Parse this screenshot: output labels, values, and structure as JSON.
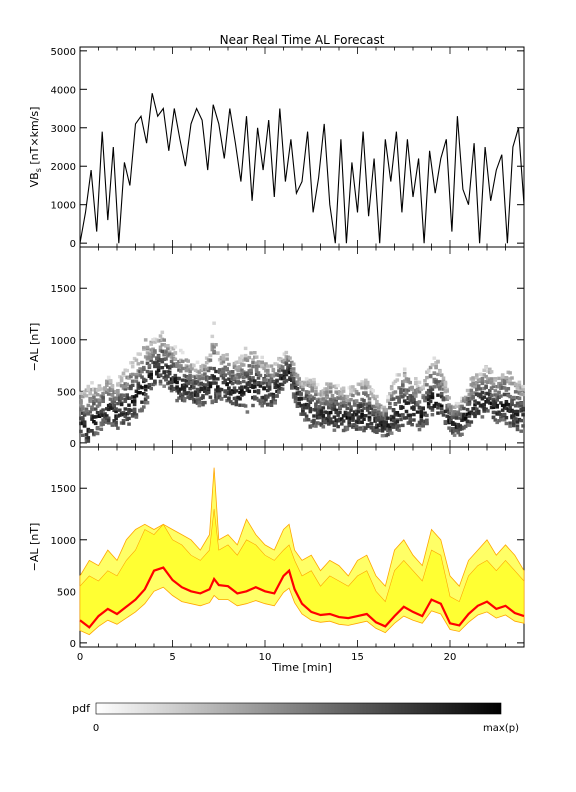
{
  "title": "Near Real Time AL Forecast",
  "xlabel": "Time [min]",
  "colorbar": {
    "label": "pdf",
    "min_label": "0",
    "max_label": "max(p)"
  },
  "chart_data": [
    {
      "type": "line",
      "name": "vbs-panel",
      "ylabel": "VB",
      "ylabel_sub": "s",
      "ylabel_units": " [nT×km/s]",
      "xlim": [
        0,
        24
      ],
      "ylim": [
        -100,
        5100
      ],
      "yticks": [
        0,
        1000,
        2000,
        3000,
        4000,
        5000
      ],
      "x": [
        0,
        0.3,
        0.6,
        0.9,
        1.2,
        1.5,
        1.8,
        2.1,
        2.4,
        2.7,
        3.0,
        3.3,
        3.6,
        3.9,
        4.2,
        4.5,
        4.8,
        5.1,
        5.4,
        5.7,
        6.0,
        6.3,
        6.6,
        6.9,
        7.2,
        7.5,
        7.8,
        8.1,
        8.4,
        8.7,
        9.0,
        9.3,
        9.6,
        9.9,
        10.2,
        10.5,
        10.8,
        11.1,
        11.4,
        11.7,
        12.0,
        12.3,
        12.6,
        12.9,
        13.2,
        13.5,
        13.8,
        14.1,
        14.4,
        14.7,
        15.0,
        15.3,
        15.6,
        15.9,
        16.2,
        16.5,
        16.8,
        17.1,
        17.4,
        17.7,
        18.0,
        18.3,
        18.6,
        18.9,
        19.2,
        19.5,
        19.8,
        20.1,
        20.4,
        20.7,
        21.0,
        21.3,
        21.6,
        21.9,
        22.2,
        22.5,
        22.8,
        23.1,
        23.4,
        23.7,
        24.0
      ],
      "values": [
        0,
        800,
        1900,
        300,
        2900,
        600,
        2500,
        0,
        2100,
        1500,
        3100,
        3300,
        2600,
        3900,
        3300,
        3500,
        2400,
        3500,
        2700,
        2000,
        3100,
        3500,
        3200,
        1900,
        3600,
        3100,
        2200,
        3500,
        2600,
        1600,
        3300,
        1100,
        3000,
        1900,
        3200,
        1200,
        3500,
        1600,
        2700,
        1300,
        1600,
        2900,
        800,
        1700,
        3100,
        1000,
        0,
        2700,
        0,
        2100,
        800,
        2900,
        700,
        2200,
        0,
        2700,
        1600,
        2900,
        800,
        2700,
        1200,
        2200,
        0,
        2400,
        1300,
        2200,
        2700,
        300,
        3300,
        1400,
        1000,
        2600,
        0,
        2500,
        1100,
        1900,
        2300,
        0,
        2500,
        3000,
        1000
      ]
    },
    {
      "type": "heatmap",
      "name": "al-pdf-panel",
      "ylabel": "−AL [nT]",
      "xlim": [
        0,
        24
      ],
      "ylim": [
        -40,
        1900
      ],
      "yticks": [
        0,
        500,
        1000,
        1500
      ]
    },
    {
      "type": "area",
      "name": "al-forecast-panel",
      "ylabel": "−AL [nT]",
      "xlim": [
        0,
        24
      ],
      "ylim": [
        -40,
        1900
      ],
      "yticks": [
        0,
        500,
        1000,
        1500
      ],
      "xticks": [
        0,
        5,
        10,
        15,
        20
      ],
      "colors": {
        "median": "#ff0000",
        "band": "#ffff33",
        "band_edge": "#ffa500"
      },
      "x": [
        0,
        0.5,
        1,
        1.5,
        2,
        2.5,
        3,
        3.5,
        4,
        4.5,
        5,
        5.5,
        6,
        6.5,
        7,
        7.25,
        7.5,
        8,
        8.5,
        9,
        9.5,
        10,
        10.5,
        11,
        11.3,
        11.6,
        12,
        12.5,
        13,
        13.5,
        14,
        14.5,
        15,
        15.5,
        16,
        16.5,
        17,
        17.5,
        18,
        18.5,
        19,
        19.5,
        20,
        20.5,
        21,
        21.5,
        22,
        22.5,
        23,
        23.5,
        24
      ],
      "median": [
        220,
        150,
        260,
        330,
        280,
        350,
        420,
        520,
        700,
        730,
        610,
        540,
        500,
        480,
        520,
        620,
        560,
        550,
        480,
        500,
        540,
        500,
        480,
        650,
        700,
        520,
        380,
        300,
        270,
        280,
        250,
        240,
        260,
        280,
        200,
        160,
        260,
        350,
        300,
        260,
        420,
        380,
        190,
        170,
        280,
        360,
        400,
        330,
        360,
        290,
        260
      ],
      "lower": [
        120,
        80,
        160,
        220,
        180,
        240,
        300,
        380,
        500,
        540,
        460,
        400,
        380,
        360,
        390,
        460,
        420,
        420,
        360,
        380,
        410,
        380,
        360,
        490,
        530,
        390,
        280,
        220,
        200,
        210,
        180,
        170,
        190,
        210,
        140,
        100,
        190,
        260,
        220,
        190,
        310,
        280,
        130,
        110,
        200,
        270,
        300,
        240,
        270,
        210,
        190
      ],
      "upper": [
        550,
        650,
        600,
        700,
        650,
        800,
        900,
        1100,
        1050,
        1150,
        1000,
        950,
        850,
        800,
        900,
        1300,
        900,
        950,
        850,
        1000,
        950,
        850,
        800,
        900,
        950,
        800,
        650,
        700,
        550,
        650,
        600,
        550,
        650,
        700,
        500,
        400,
        700,
        800,
        700,
        600,
        900,
        850,
        450,
        400,
        650,
        750,
        800,
        700,
        800,
        700,
        600
      ],
      "envelope": [
        650,
        800,
        750,
        900,
        800,
        1000,
        1100,
        1150,
        1100,
        1150,
        1100,
        1050,
        1000,
        900,
        1050,
        1700,
        1000,
        1050,
        950,
        1200,
        1050,
        950,
        900,
        1100,
        1150,
        900,
        800,
        850,
        700,
        800,
        750,
        650,
        800,
        850,
        650,
        550,
        900,
        1000,
        850,
        750,
        1100,
        1000,
        650,
        550,
        800,
        900,
        1000,
        850,
        950,
        850,
        700
      ]
    }
  ]
}
